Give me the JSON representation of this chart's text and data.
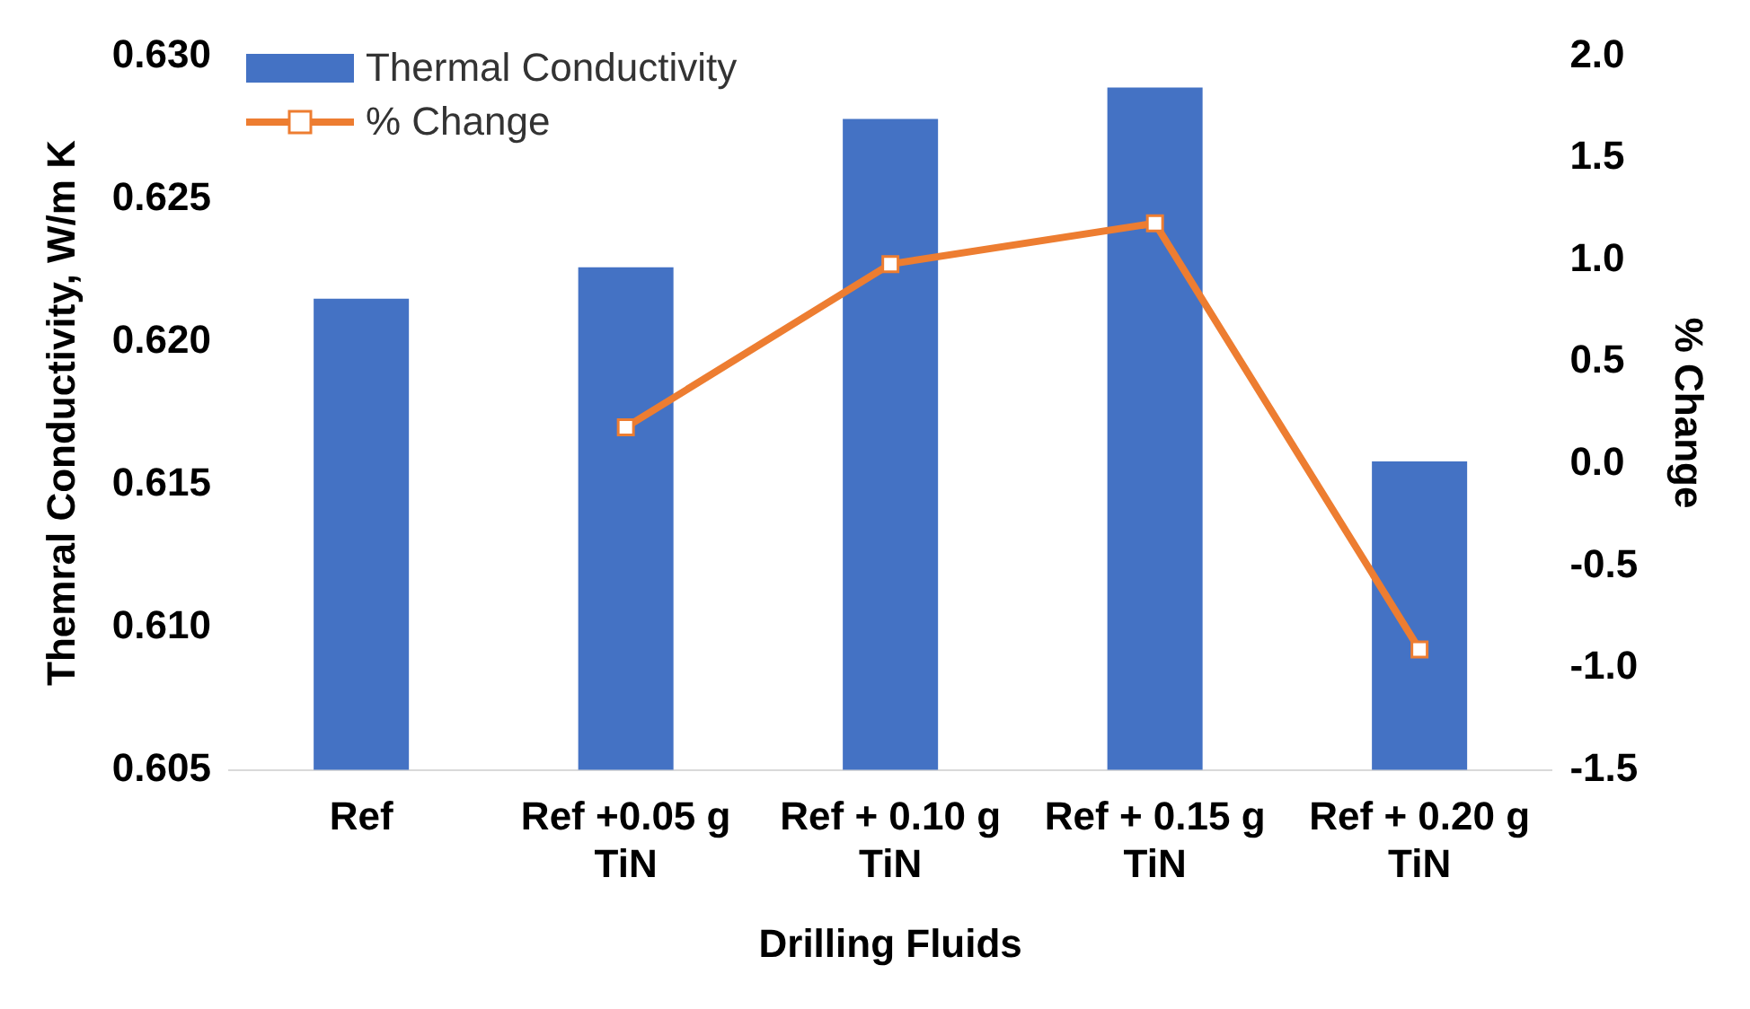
{
  "chart_data": {
    "type": "bar",
    "xlabel": "Drilling Fluids",
    "ylabel": "Themral Conductivity, W/m K",
    "y2label": "% Change",
    "categories": [
      "Ref",
      "Ref +0.05 g TiN",
      "Ref + 0.10 g TiN",
      "Ref + 0.15 g TiN",
      "Ref + 0.20 g TiN"
    ],
    "series": [
      {
        "name": "Thermal Conductivity",
        "color": "#4472c4",
        "values": [
          0.6215,
          0.6226,
          0.6278,
          0.6289,
          0.6158
        ]
      },
      {
        "name": "% Change",
        "type": "line",
        "axis": "y2",
        "color": "#ed7d31",
        "marker": "square",
        "values": [
          null,
          0.18,
          0.98,
          1.18,
          -0.91
        ]
      }
    ],
    "ylim": [
      0.605,
      0.63
    ],
    "yticks": [
      0.605,
      {
        "value": 0.61,
        "label": "0.610"
      },
      0.615,
      {
        "value": 0.62,
        "label": "0.620"
      },
      0.625,
      {
        "value": 0.63,
        "label": "0.630"
      }
    ],
    "y2lim": [
      -1.5,
      2.0
    ],
    "y2ticks": [
      -1.5,
      {
        "value": -1,
        "label": "-1.0"
      },
      -0.5,
      {
        "value": 0,
        "label": "0.0"
      },
      0.5,
      {
        "value": 1,
        "label": "1.0"
      },
      1.5,
      {
        "value": 2,
        "label": "2.0"
      }
    ],
    "legend": "top left",
    "grid": false
  }
}
